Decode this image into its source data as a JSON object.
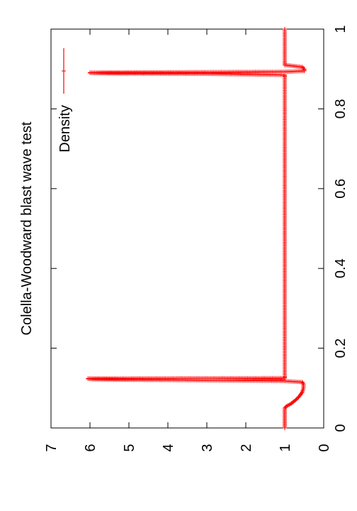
{
  "chart_data": {
    "type": "line",
    "title": "Colella-Woodward blast wave test",
    "orientation": "rotated 90 degrees counter-clockwise (landscape plot on portrait page)",
    "xlim": [
      0,
      1
    ],
    "ylim": [
      0,
      7
    ],
    "x_ticks": [
      "0",
      "0.2",
      "0.4",
      "0.6",
      "0.8",
      "1"
    ],
    "y_ticks": [
      "0",
      "1",
      "2",
      "3",
      "4",
      "5",
      "6",
      "7"
    ],
    "xlabel": "",
    "ylabel": "",
    "grid": false,
    "legend": {
      "position": "top-right",
      "entries": [
        "Density"
      ]
    },
    "colors": {
      "series": "#ff0000",
      "axes": "#000000",
      "background": "#ffffff"
    },
    "series": [
      {
        "name": "Density",
        "marker": "plus",
        "x": [
          0.0,
          0.02,
          0.04,
          0.05,
          0.055,
          0.06,
          0.07,
          0.08,
          0.09,
          0.1,
          0.11,
          0.115,
          0.118,
          0.12,
          0.121,
          0.122,
          0.123,
          0.124,
          0.125,
          0.13,
          0.2,
          0.3,
          0.4,
          0.5,
          0.6,
          0.7,
          0.8,
          0.85,
          0.88,
          0.885,
          0.888,
          0.889,
          0.89,
          0.891,
          0.893,
          0.895,
          0.9,
          0.905,
          0.91,
          0.92,
          0.95,
          1.0
        ],
        "y": [
          1.0,
          1.0,
          1.0,
          1.0,
          0.95,
          0.85,
          0.72,
          0.62,
          0.55,
          0.52,
          0.52,
          0.55,
          1.1,
          3.5,
          5.2,
          5.9,
          6.05,
          6.05,
          1.0,
          1.0,
          1.0,
          1.0,
          1.0,
          1.0,
          1.0,
          1.0,
          1.0,
          1.0,
          1.0,
          1.0,
          3.0,
          5.5,
          6.0,
          6.0,
          1.0,
          0.5,
          0.5,
          0.55,
          1.0,
          1.0,
          1.0,
          1.0
        ]
      }
    ]
  }
}
